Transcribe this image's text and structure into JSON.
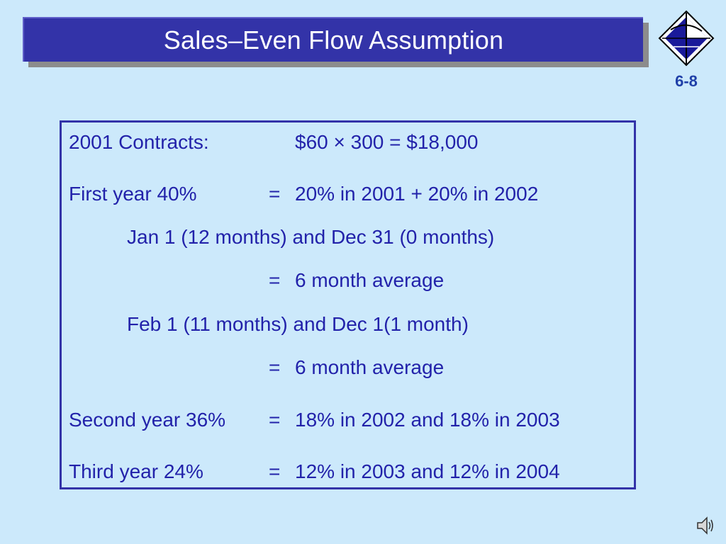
{
  "slide": {
    "title": "Sales–Even Flow Assumption",
    "number": "6-8"
  },
  "content": {
    "contracts": {
      "label": "2001 Contracts:",
      "value": "$60 × 300 = $18,000"
    },
    "first_year": {
      "label": "First year 40%",
      "eq": "=",
      "value": "20% in 2001 + 20% in 2002"
    },
    "jan_note": "Jan 1 (12 months) and Dec 31 (0 months)",
    "jan_result": {
      "eq": "=",
      "value": "6 month average"
    },
    "feb_note": "Feb 1 (11 months) and Dec 1(1 month)",
    "feb_result": {
      "eq": "=",
      "value": "6 month average"
    },
    "second_year": {
      "label": "Second year 36%",
      "eq": "=",
      "value": "18% in 2002 and 18% in 2003"
    },
    "third_year": {
      "label": "Third year 24%",
      "eq": "=",
      "value": "12% in 2003 and 12% in 2004"
    }
  },
  "icons": {
    "logo": "diamond-logo-icon",
    "sound": "speaker-icon"
  },
  "colors": {
    "background": "#CCE9FB",
    "title_bar": "#3333A8",
    "text": "#2222AA",
    "slide_number": "#1F3FA8"
  }
}
